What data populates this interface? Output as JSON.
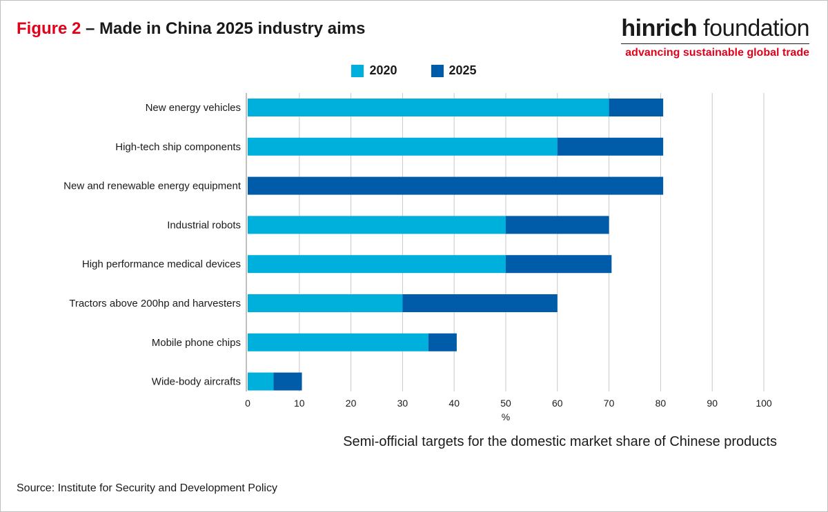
{
  "header": {
    "figure_label": "Figure 2",
    "title_rest": " – Made in China 2025 industry aims"
  },
  "brand": {
    "name_bold": "hinrich",
    "name_light": " foundation",
    "tagline": "advancing sustainable global trade"
  },
  "footer": {
    "note": "Semi-official targets for the domestic market share of Chinese products",
    "source": "Source: Institute for Security and Development Policy"
  },
  "colors": {
    "series_2020": "#00b0dc",
    "series_2025": "#005ca9",
    "grid": "#c8c8c8",
    "accent_red": "#e3001b"
  },
  "chart_data": {
    "type": "bar",
    "orientation": "horizontal",
    "stacked": true,
    "categories": [
      "New energy vehicles",
      "High-tech ship components",
      "New and renewable energy equipment",
      "Industrial robots",
      "High performance medical devices",
      "Tractors above 200hp and harvesters",
      "Mobile phone chips",
      "Wide-body aircrafts"
    ],
    "series": [
      {
        "name": "2020",
        "values": [
          70,
          60,
          0,
          50,
          50,
          30,
          35,
          5
        ]
      },
      {
        "name": "2025",
        "values": [
          10.5,
          20.5,
          80.5,
          20,
          20.5,
          30,
          5.5,
          5.5
        ]
      }
    ],
    "xlim": [
      0,
      100
    ],
    "xticks": [
      0,
      10,
      20,
      30,
      40,
      50,
      60,
      70,
      80,
      90,
      100
    ],
    "xlabel": "%",
    "grid": "vertical",
    "legend_position": "top-center"
  }
}
